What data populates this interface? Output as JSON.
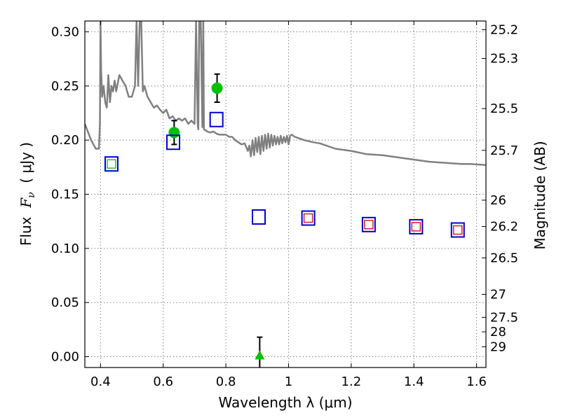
{
  "chart_data": {
    "type": "scatter",
    "xlabel": "Wavelength  λ (μm)",
    "ylabel_prefix": "Flux  ",
    "ylabel_var": "F",
    "ylabel_sub": "ν",
    "ylabel_suffix": "  ( μJy )",
    "y2label": "Magnitude (AB)",
    "xlim": [
      0.35,
      1.63
    ],
    "ylim": [
      -0.01,
      0.31
    ],
    "grid": true,
    "x_ticks": [
      {
        "value": 0.4,
        "label": "0.4"
      },
      {
        "value": 0.6,
        "label": "0.6"
      },
      {
        "value": 0.8,
        "label": "0.8"
      },
      {
        "value": 1.0,
        "label": "1"
      },
      {
        "value": 1.2,
        "label": "1.2"
      },
      {
        "value": 1.4,
        "label": "1.4"
      },
      {
        "value": 1.6,
        "label": "1.6"
      }
    ],
    "y_ticks": [
      {
        "value": 0.0,
        "label": "0.00"
      },
      {
        "value": 0.05,
        "label": "0.05"
      },
      {
        "value": 0.1,
        "label": "0.10"
      },
      {
        "value": 0.15,
        "label": "0.15"
      },
      {
        "value": 0.2,
        "label": "0.20"
      },
      {
        "value": 0.25,
        "label": "0.25"
      },
      {
        "value": 0.3,
        "label": "0.30"
      }
    ],
    "y2_ticks": [
      {
        "value": 25.2,
        "label": "25.2"
      },
      {
        "value": 25.3,
        "label": "25.3"
      },
      {
        "value": 25.5,
        "label": "25.5"
      },
      {
        "value": 25.7,
        "label": "25.7"
      },
      {
        "value": 26,
        "label": "26"
      },
      {
        "value": 26.2,
        "label": "26.2"
      },
      {
        "value": 26.5,
        "label": "26.5"
      },
      {
        "value": 27,
        "label": "27"
      },
      {
        "value": 27.5,
        "label": "27.5"
      },
      {
        "value": 28,
        "label": "28"
      },
      {
        "value": 29,
        "label": "29"
      }
    ],
    "series": [
      {
        "kind": "line",
        "color": "#808080",
        "x": [
          0.35,
          0.37,
          0.385,
          0.395,
          0.398,
          0.4,
          0.402,
          0.405,
          0.41,
          0.415,
          0.42,
          0.425,
          0.43,
          0.435,
          0.44,
          0.445,
          0.45,
          0.46,
          0.47,
          0.48,
          0.485,
          0.49,
          0.5,
          0.51,
          0.515,
          0.52,
          0.525,
          0.53,
          0.535,
          0.54,
          0.55,
          0.56,
          0.57,
          0.58,
          0.59,
          0.6,
          0.61,
          0.62,
          0.63,
          0.64,
          0.65,
          0.66,
          0.67,
          0.68,
          0.69,
          0.7,
          0.705,
          0.71,
          0.712,
          0.715,
          0.72,
          0.725,
          0.728,
          0.73,
          0.74,
          0.75,
          0.76,
          0.77,
          0.78,
          0.79,
          0.8,
          0.81,
          0.82,
          0.83,
          0.84,
          0.85,
          0.86,
          0.87,
          0.875,
          0.88,
          0.885,
          0.89,
          0.895,
          0.9,
          0.905,
          0.91,
          0.915,
          0.92,
          0.925,
          0.93,
          0.935,
          0.94,
          0.945,
          0.95,
          0.955,
          0.96,
          0.965,
          0.97,
          0.975,
          0.98,
          0.985,
          0.99,
          0.995,
          1.0,
          1.005,
          1.01,
          1.02,
          1.03,
          1.05,
          1.08,
          1.1,
          1.12,
          1.15,
          1.2,
          1.25,
          1.3,
          1.35,
          1.4,
          1.45,
          1.5,
          1.55,
          1.58,
          1.63
        ],
        "y": [
          0.215,
          0.2,
          0.192,
          0.192,
          0.215,
          0.31,
          0.265,
          0.24,
          0.25,
          0.235,
          0.23,
          0.26,
          0.235,
          0.25,
          0.245,
          0.255,
          0.245,
          0.26,
          0.255,
          0.25,
          0.245,
          0.24,
          0.24,
          0.25,
          0.31,
          0.25,
          0.31,
          0.31,
          0.245,
          0.25,
          0.24,
          0.235,
          0.23,
          0.232,
          0.228,
          0.225,
          0.228,
          0.22,
          0.222,
          0.218,
          0.22,
          0.218,
          0.22,
          0.215,
          0.218,
          0.215,
          0.31,
          0.215,
          0.21,
          0.31,
          0.31,
          0.212,
          0.31,
          0.21,
          0.208,
          0.207,
          0.208,
          0.206,
          0.205,
          0.205,
          0.205,
          0.203,
          0.203,
          0.2,
          0.198,
          0.196,
          0.197,
          0.19,
          0.195,
          0.185,
          0.2,
          0.186,
          0.202,
          0.189,
          0.203,
          0.187,
          0.204,
          0.19,
          0.205,
          0.192,
          0.206,
          0.193,
          0.205,
          0.195,
          0.204,
          0.196,
          0.203,
          0.196,
          0.204,
          0.197,
          0.203,
          0.198,
          0.204,
          0.196,
          0.204,
          0.205,
          0.203,
          0.202,
          0.2,
          0.198,
          0.197,
          0.195,
          0.192,
          0.19,
          0.187,
          0.186,
          0.184,
          0.182,
          0.18,
          0.179,
          0.178,
          0.178,
          0.177
        ]
      },
      {
        "kind": "points",
        "marker": "circle",
        "color": "#00c000",
        "x": [
          0.635,
          0.772
        ],
        "y": [
          0.207,
          0.248
        ],
        "yerr": [
          0.011,
          0.013
        ]
      },
      {
        "kind": "points",
        "marker": "triangle",
        "color": "#00c000",
        "x": [
          0.908
        ],
        "y": [
          0.0
        ],
        "yerr": [
          0.018
        ]
      },
      {
        "kind": "points",
        "marker": "open-square",
        "color": "#0000cc",
        "x": [
          0.435,
          0.632,
          0.77,
          0.905,
          1.063,
          1.256,
          1.407,
          1.54
        ],
        "y": [
          0.178,
          0.198,
          0.219,
          0.129,
          0.128,
          0.122,
          0.12,
          0.117
        ]
      },
      {
        "kind": "points",
        "marker": "small-open-square",
        "color": "#33bb33",
        "x": [
          0.435
        ],
        "y": [
          0.178
        ]
      },
      {
        "kind": "points",
        "marker": "small-open-square",
        "color": "#cc2233",
        "x": [
          1.063,
          1.256,
          1.407,
          1.54
        ],
        "y": [
          0.128,
          0.122,
          0.12,
          0.117
        ]
      }
    ]
  }
}
